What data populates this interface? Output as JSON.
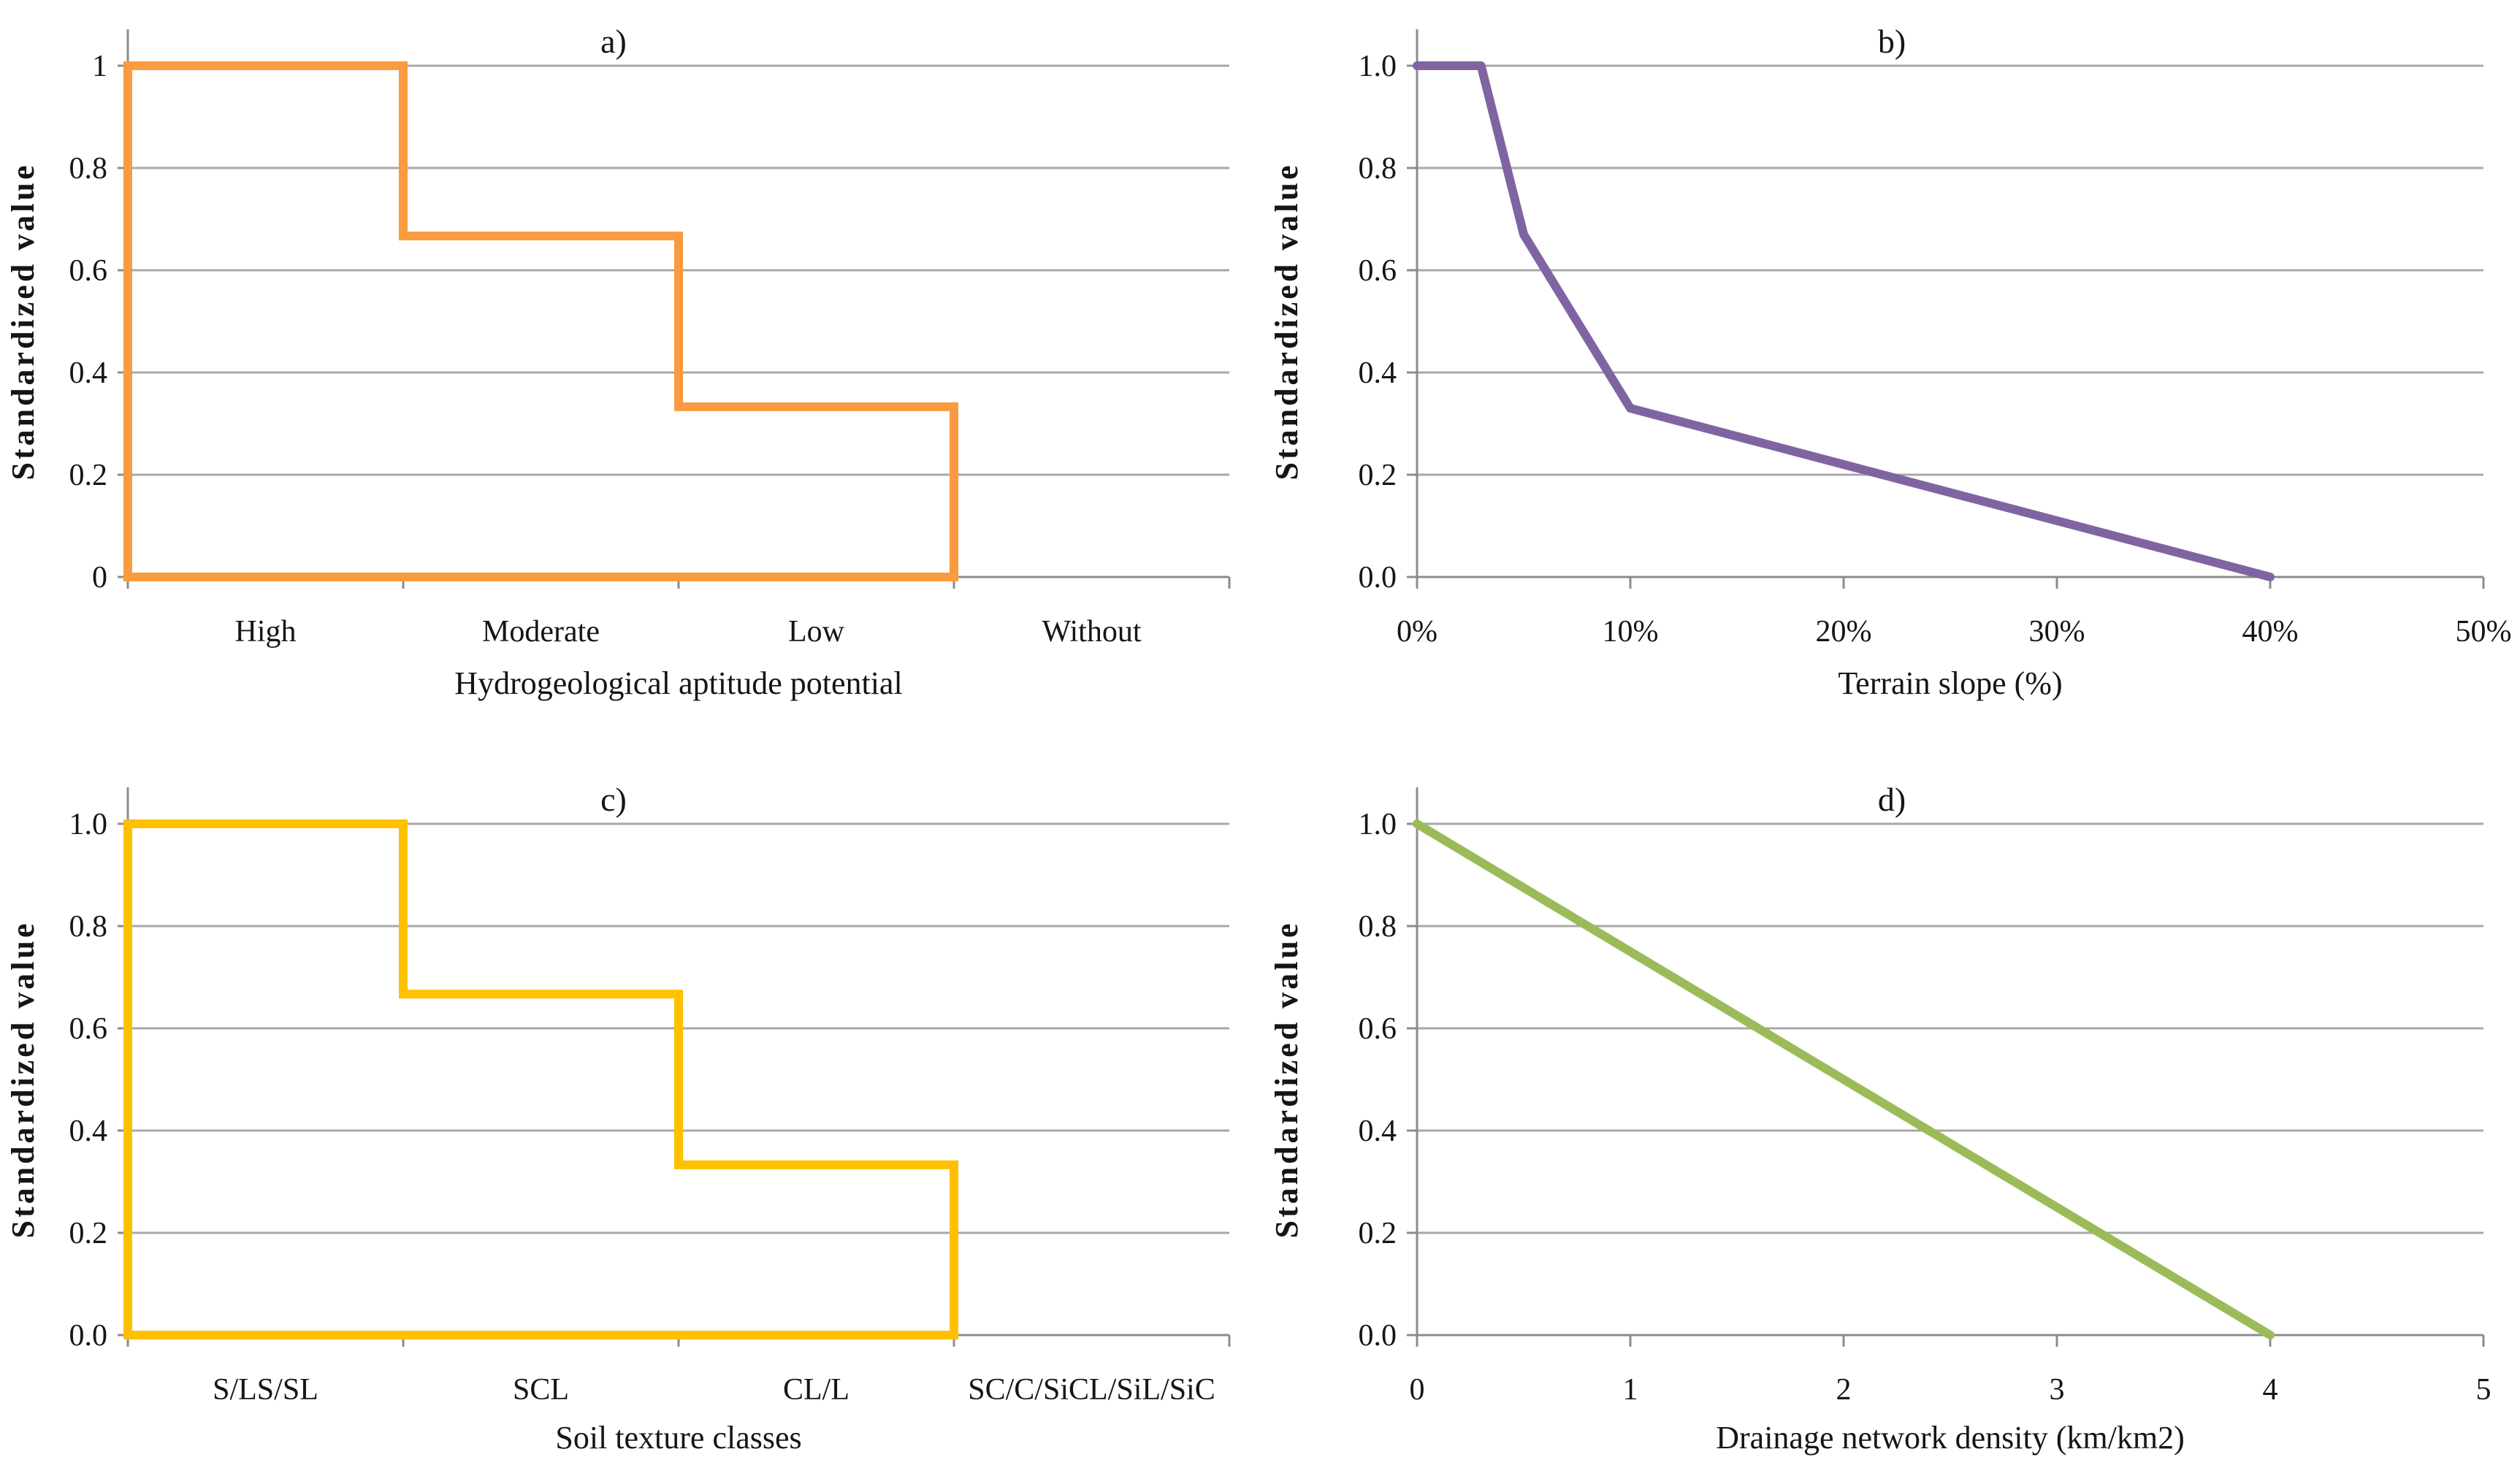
{
  "figure": {
    "background": "#ffffff",
    "grid_color": "#A8A8A8",
    "axis_color": "#8C8C8C",
    "text_color": "#151515"
  },
  "chart_data": [
    {
      "id": "a",
      "type": "step",
      "title": "a)",
      "xlabel": "Hydrogeological aptitude potential",
      "ylabel": "Standardized value",
      "categories": [
        "High",
        "Moderate",
        "Low",
        "Without"
      ],
      "values": [
        1,
        0.667,
        0.333,
        0
      ],
      "ylim": [
        0,
        1
      ],
      "ytick_labels": [
        "0",
        "0.2",
        "0.4",
        "0.6",
        "0.8",
        "1"
      ],
      "color": "#F99B3E",
      "grid": "horizontal",
      "legend": "none"
    },
    {
      "id": "b",
      "type": "line",
      "title": "b)",
      "xlabel": "Terrain slope (%)",
      "ylabel": "Standardized value",
      "x": [
        0,
        3,
        5,
        10,
        40
      ],
      "y": [
        1,
        1,
        0.67,
        0.33,
        0
      ],
      "xlim": [
        0,
        50
      ],
      "xticks": [
        0,
        10,
        20,
        30,
        40,
        50
      ],
      "xtick_labels": [
        "0%",
        "10%",
        "20%",
        "30%",
        "40%",
        "50%"
      ],
      "ylim": [
        0,
        1
      ],
      "ytick_labels": [
        "0.0",
        "0.2",
        "0.4",
        "0.6",
        "0.8",
        "1.0"
      ],
      "color": "#8064A2",
      "grid": "horizontal",
      "legend": "none"
    },
    {
      "id": "c",
      "type": "step",
      "title": "c)",
      "xlabel": "Soil texture classes",
      "ylabel": "Standardized value",
      "categories": [
        "S/LS/SL",
        "SCL",
        "CL/L",
        "SC/C/SiCL/SiL/SiC"
      ],
      "values": [
        1,
        0.667,
        0.333,
        0
      ],
      "ylim": [
        0,
        1
      ],
      "ytick_labels": [
        "0.0",
        "0.2",
        "0.4",
        "0.6",
        "0.8",
        "1.0"
      ],
      "color": "#FFC000",
      "grid": "horizontal",
      "legend": "none"
    },
    {
      "id": "d",
      "type": "line",
      "title": "d)",
      "xlabel": "Drainage network density (km/km2)",
      "ylabel": "Standardized value",
      "x": [
        0,
        4
      ],
      "y": [
        1,
        0
      ],
      "xlim": [
        0,
        5
      ],
      "xticks": [
        0,
        1,
        2,
        3,
        4,
        5
      ],
      "xtick_labels": [
        "0",
        "1",
        "2",
        "3",
        "4",
        "5"
      ],
      "ylim": [
        0,
        1
      ],
      "ytick_labels": [
        "0.0",
        "0.2",
        "0.4",
        "0.6",
        "0.8",
        "1.0"
      ],
      "color": "#9BBB59",
      "grid": "horizontal",
      "legend": "none"
    }
  ]
}
